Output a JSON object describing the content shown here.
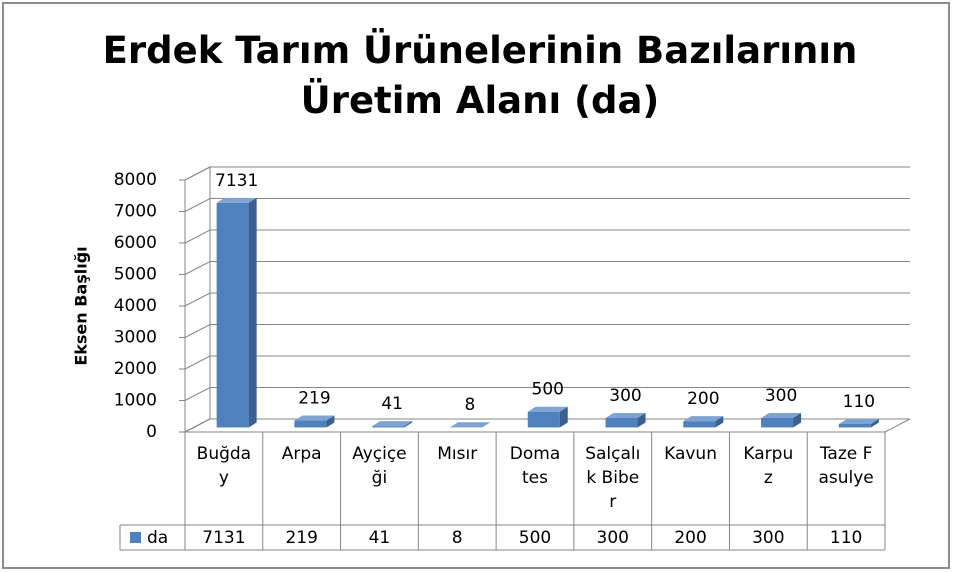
{
  "chart_data": {
    "type": "bar3d",
    "title": "Erdek Tarım Ürünelerinin Bazılarının Üretim Alanı (da)",
    "y_label": "Eksen Başlığı",
    "categories": [
      "Buğday",
      "Arpa",
      "Ayçiçeği",
      "Mısır",
      "Domates",
      "Salçalık Biber",
      "Kavun",
      "Karpuz",
      "Taze Fasulye"
    ],
    "series": [
      {
        "name": "da",
        "color": "#4f81bd",
        "values": [
          7131,
          219,
          41,
          8,
          500,
          300,
          200,
          300,
          110
        ]
      }
    ],
    "ylim": [
      0,
      8000
    ],
    "yticks": [
      0,
      1000,
      2000,
      3000,
      4000,
      5000,
      6000,
      7000,
      8000
    ],
    "grid": true,
    "data_table": true
  }
}
